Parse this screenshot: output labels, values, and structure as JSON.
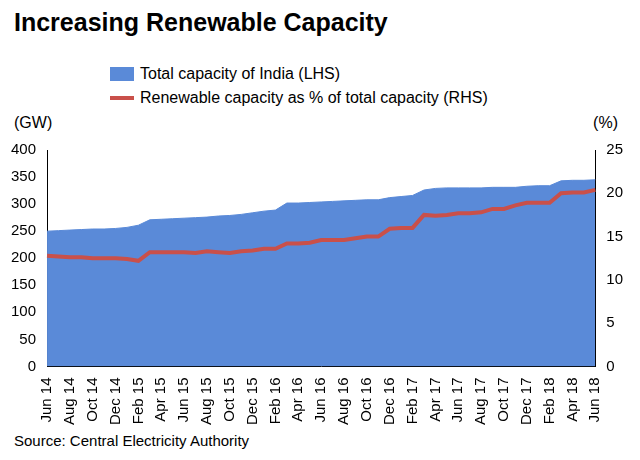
{
  "chart_data": {
    "type": "line",
    "title": "Increasing Renewable Capacity",
    "categories": [
      "Jun 14",
      null,
      "Aug 14",
      null,
      "Oct 14",
      null,
      "Dec 14",
      null,
      "Feb 15",
      null,
      "Apr 15",
      null,
      "Jun 15",
      null,
      "Aug 15",
      null,
      "Oct 15",
      null,
      "Dec 15",
      null,
      "Feb 16",
      null,
      "Apr 16",
      null,
      "Jun 16",
      null,
      "Aug 16",
      null,
      "Oct 16",
      null,
      "Dec 16",
      null,
      "Feb 17",
      null,
      "Apr 17",
      null,
      "Jun 17",
      null,
      "Aug 17",
      null,
      "Oct 17",
      null,
      "Dec 17",
      null,
      "Feb 18",
      null,
      "Apr 18",
      null,
      "Jun 18"
    ],
    "series": [
      {
        "name": "Total capacity of India (LHS)",
        "type": "area",
        "color": "#5a8ad8",
        "values": [
          250,
          251,
          252,
          253,
          254,
          254,
          255,
          257,
          261,
          271,
          272,
          273,
          274,
          275,
          276,
          278,
          279,
          281,
          284,
          287,
          289,
          302,
          302,
          303,
          304,
          305,
          306,
          307,
          308,
          308,
          312,
          314,
          316,
          326,
          329,
          330,
          330,
          330,
          330,
          331,
          331,
          331,
          333,
          334,
          334,
          343,
          344,
          344,
          345
        ]
      },
      {
        "name": "Renewable capacity as % of total capacity (RHS)",
        "type": "line",
        "color": "#c9504a",
        "axis": "y2",
        "values": [
          12.8,
          12.7,
          12.6,
          12.6,
          12.5,
          12.5,
          12.5,
          12.4,
          12.2,
          13.2,
          13.2,
          13.2,
          13.2,
          13.1,
          13.3,
          13.2,
          13.1,
          13.3,
          13.4,
          13.6,
          13.6,
          14.2,
          14.2,
          14.3,
          14.6,
          14.6,
          14.6,
          14.8,
          15.0,
          15.0,
          15.9,
          16.0,
          16.0,
          17.5,
          17.4,
          17.5,
          17.7,
          17.7,
          17.8,
          18.2,
          18.2,
          18.6,
          18.9,
          18.9,
          18.9,
          20.0,
          20.1,
          20.1,
          20.4
        ]
      }
    ],
    "y_label": "(GW)",
    "y2_label": "(%)",
    "ylim": [
      0,
      400
    ],
    "yticks": [
      0,
      50,
      100,
      150,
      200,
      250,
      300,
      350,
      400
    ],
    "y2lim": [
      0,
      25
    ],
    "y2ticks": [
      0,
      5,
      10,
      15,
      20,
      25
    ],
    "grid": false,
    "legend": "top-left",
    "source": "Source: Central Electricity Authority"
  }
}
